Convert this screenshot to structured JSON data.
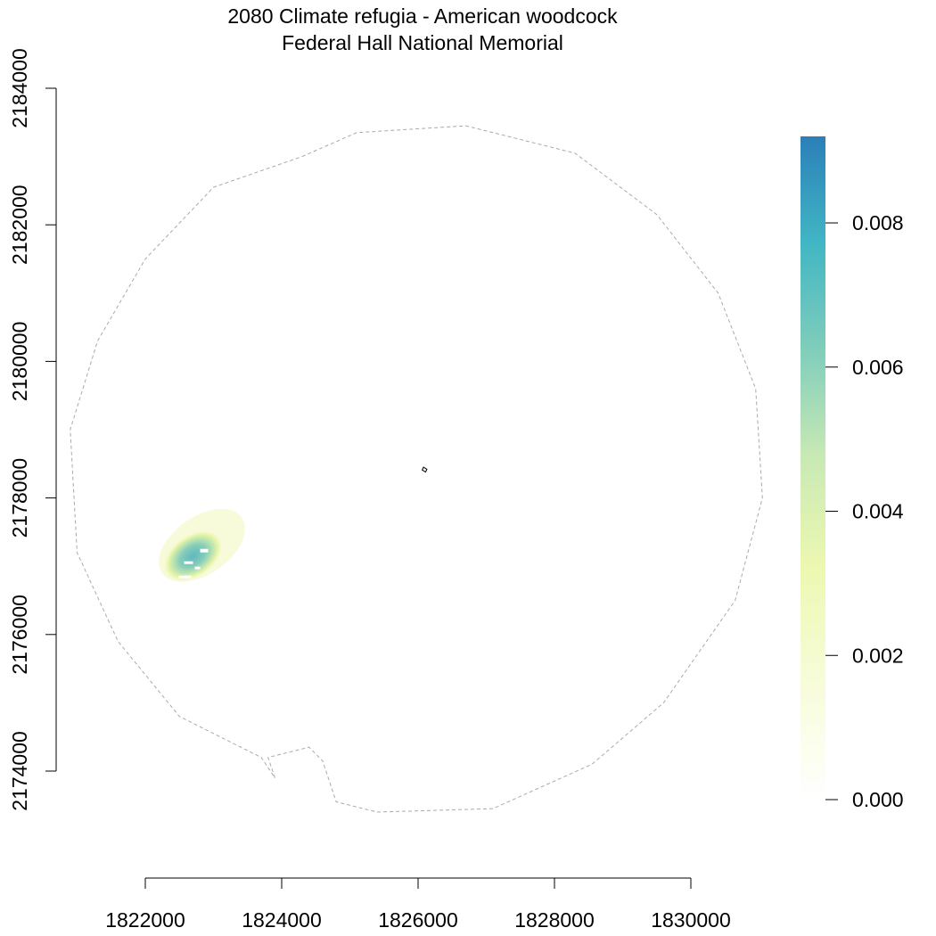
{
  "chart_data": {
    "type": "heatmap",
    "title": "2080 Climate refugia - American woodcock",
    "subtitle": "Federal Hall National Memorial",
    "xlabel": "",
    "ylabel": "",
    "xlim": [
      1820000,
      1832000
    ],
    "ylim": [
      2173000,
      2184500
    ],
    "x_ticks": [
      1822000,
      1824000,
      1826000,
      1828000,
      1830000
    ],
    "y_ticks": [
      2174000,
      2176000,
      2178000,
      2180000,
      2182000,
      2184000
    ],
    "x_tick_labels": [
      "1822000",
      "1824000",
      "1826000",
      "1828000",
      "1830000"
    ],
    "y_tick_labels": [
      "2174000",
      "2176000",
      "2178000",
      "2180000",
      "2182000",
      "2184000"
    ],
    "legend": {
      "position": "right",
      "min": 0,
      "max": 0.0092,
      "ticks": [
        0.0,
        0.002,
        0.004,
        0.006,
        0.008
      ],
      "tick_labels": [
        "0.000",
        "0.002",
        "0.004",
        "0.006",
        "0.008"
      ],
      "colors": [
        "#ffffff",
        "#f7fcd8",
        "#edf8b1",
        "#c7e9b4",
        "#7fcdbb",
        "#41b6c4",
        "#2c7fb8"
      ]
    },
    "buffer_boundary": [
      [
        1824300,
        2183000
      ],
      [
        1825100,
        2183350
      ],
      [
        1826700,
        2183450
      ],
      [
        1828300,
        2183050
      ],
      [
        1829500,
        2182150
      ],
      [
        1830400,
        2181000
      ],
      [
        1830950,
        2179600
      ],
      [
        1831050,
        2178000
      ],
      [
        1830650,
        2176500
      ],
      [
        1829600,
        2175000
      ],
      [
        1828550,
        2174100
      ],
      [
        1827100,
        2173450
      ],
      [
        1825400,
        2173400
      ],
      [
        1824800,
        2173550
      ],
      [
        1824600,
        2174150
      ],
      [
        1824400,
        2174350
      ],
      [
        1823800,
        2174200
      ],
      [
        1823900,
        2173900
      ],
      [
        1823700,
        2174200
      ],
      [
        1822500,
        2174800
      ],
      [
        1821600,
        2175900
      ],
      [
        1821000,
        2177200
      ],
      [
        1820900,
        2179000
      ],
      [
        1821300,
        2180300
      ],
      [
        1822000,
        2181500
      ],
      [
        1823000,
        2182550
      ],
      [
        1824300,
        2183000
      ]
    ],
    "park_boundary": [
      [
        1826080,
        2178450
      ],
      [
        1826130,
        2178420
      ],
      [
        1826110,
        2178380
      ],
      [
        1826060,
        2178410
      ]
    ],
    "hotspot": {
      "center": [
        1822700,
        2177150
      ],
      "peak_value": 0.0068,
      "extent_x": [
        1822200,
        1823700
      ],
      "extent_y": [
        2176700,
        2177900
      ]
    }
  }
}
